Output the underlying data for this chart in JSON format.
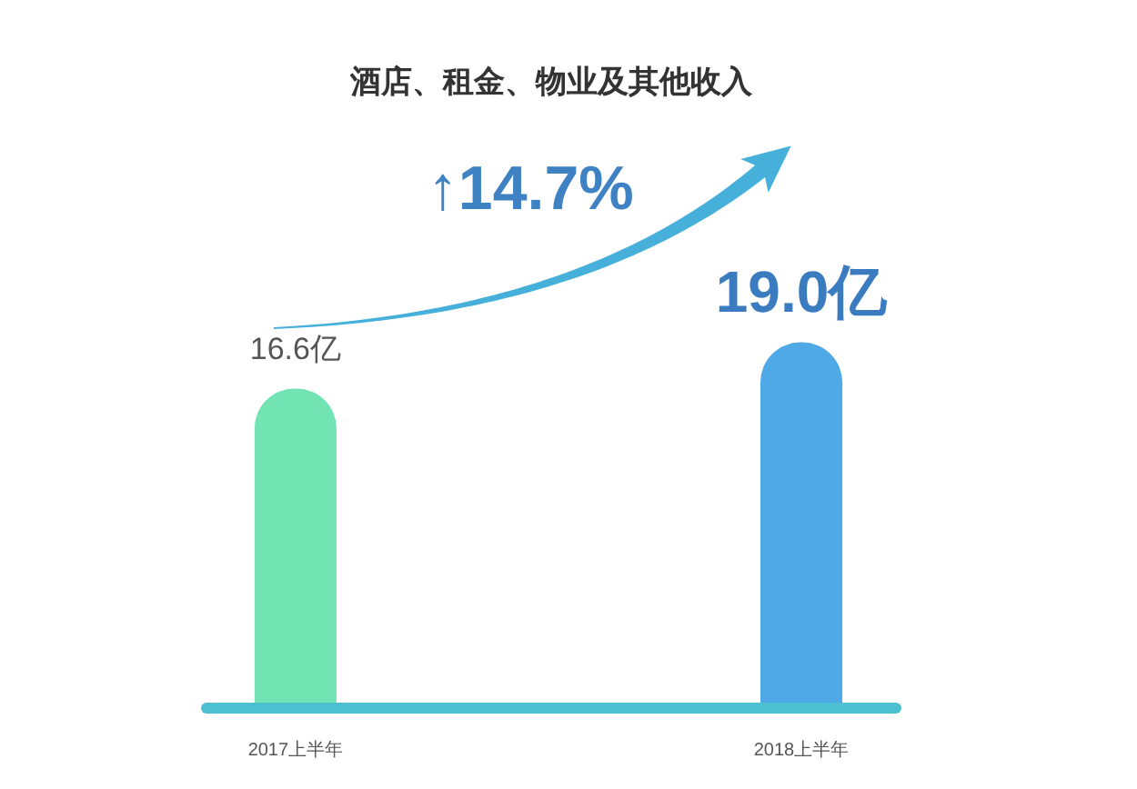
{
  "chart_data": {
    "type": "bar",
    "title": "酒店、租金、物业及其他收入",
    "categories": [
      "2017上半年",
      "2018上半年"
    ],
    "values": [
      16.6,
      19.0
    ],
    "value_labels": [
      "16.6亿",
      "19.0亿"
    ],
    "colors": [
      "#72e3b2",
      "#4fa9e6"
    ],
    "tick_labels": "x",
    "annotations": [
      "↑14.7%"
    ]
  }
}
